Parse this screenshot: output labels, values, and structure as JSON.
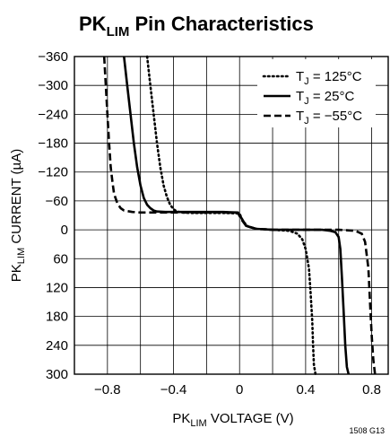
{
  "chart_data": {
    "type": "line",
    "title": {
      "main": "PK",
      "sub": "LIM",
      "rest": " Pin Characteristics"
    },
    "xlabel": {
      "main": "PK",
      "sub": "LIM",
      "rest": " VOLTAGE (V)"
    },
    "ylabel": {
      "main": "PK",
      "sub": "LIM",
      "rest": " CURRENT (µA)"
    },
    "xlim": [
      -1.0,
      0.9
    ],
    "ylim": [
      -360,
      300
    ],
    "y_inverted": true,
    "grid": true,
    "x_ticks": [
      -0.8,
      -0.6,
      -0.4,
      -0.2,
      0,
      0.2,
      0.4,
      0.6,
      0.8
    ],
    "x_tick_labels": [
      "−0.8",
      "",
      "−0.4",
      "",
      "0",
      "",
      "0.4",
      "",
      "0.8"
    ],
    "y_ticks": [
      -360,
      -300,
      -240,
      -180,
      -120,
      -60,
      0,
      60,
      120,
      180,
      240,
      300
    ],
    "y_tick_labels": [
      "−360",
      "−300",
      "−240",
      "−180",
      "−120",
      "−60",
      "0",
      "60",
      "120",
      "180",
      "240",
      "300"
    ],
    "legend_position": "top-right",
    "series": [
      {
        "name_main": "T",
        "name_sub": "J",
        "name_rest": " = 125°C",
        "style": "dotted",
        "x": [
          -0.56,
          -0.54,
          -0.52,
          -0.5,
          -0.48,
          -0.46,
          -0.44,
          -0.42,
          -0.4,
          -0.38,
          -0.35,
          -0.3,
          -0.2,
          -0.1,
          0,
          0.02,
          0.05,
          0.1,
          0.2,
          0.3,
          0.35,
          0.38,
          0.4,
          0.42,
          0.43,
          0.44,
          0.445,
          0.45,
          0.46
        ],
        "y": [
          -360,
          -300,
          -240,
          -180,
          -130,
          -92,
          -68,
          -52,
          -43,
          -38,
          -36,
          -35,
          -35,
          -35,
          -34,
          -18,
          -7,
          -2,
          0,
          2,
          8,
          20,
          40,
          80,
          130,
          190,
          240,
          280,
          300
        ]
      },
      {
        "name_main": "T",
        "name_sub": "J",
        "name_rest": " = 25°C",
        "style": "solid",
        "x": [
          -0.7,
          -0.68,
          -0.66,
          -0.64,
          -0.62,
          -0.6,
          -0.58,
          -0.56,
          -0.54,
          -0.52,
          -0.5,
          -0.45,
          -0.4,
          -0.3,
          -0.2,
          -0.1,
          -0.01,
          0.01,
          0.04,
          0.1,
          0.2,
          0.4,
          0.5,
          0.55,
          0.58,
          0.6,
          0.61,
          0.62,
          0.63,
          0.64,
          0.65,
          0.66
        ],
        "y": [
          -360,
          -300,
          -240,
          -180,
          -130,
          -92,
          -66,
          -52,
          -45,
          -40,
          -38,
          -37,
          -37,
          -37,
          -37,
          -37,
          -36,
          -25,
          -8,
          -2,
          0,
          0,
          0,
          2,
          5,
          15,
          40,
          100,
          170,
          240,
          285,
          300
        ]
      },
      {
        "name_main": "T",
        "name_sub": "J",
        "name_rest": " = −55°C",
        "style": "dashed",
        "x": [
          -0.82,
          -0.81,
          -0.8,
          -0.79,
          -0.78,
          -0.77,
          -0.76,
          -0.74,
          -0.72,
          -0.7,
          -0.65,
          -0.6,
          -0.5,
          -0.4,
          -0.3,
          -0.2,
          -0.1,
          -0.01,
          0.01,
          0.04,
          0.1,
          0.2,
          0.4,
          0.6,
          0.7,
          0.74,
          0.76,
          0.78,
          0.79,
          0.8,
          0.81,
          0.82
        ],
        "y": [
          -360,
          -300,
          -240,
          -180,
          -130,
          -100,
          -75,
          -55,
          -45,
          -40,
          -37,
          -36,
          -36,
          -36,
          -36,
          -36,
          -36,
          -35,
          -22,
          -8,
          -2,
          0,
          0,
          0,
          2,
          8,
          25,
          80,
          150,
          220,
          270,
          300
        ]
      }
    ],
    "figure_id": "1508 G13"
  }
}
